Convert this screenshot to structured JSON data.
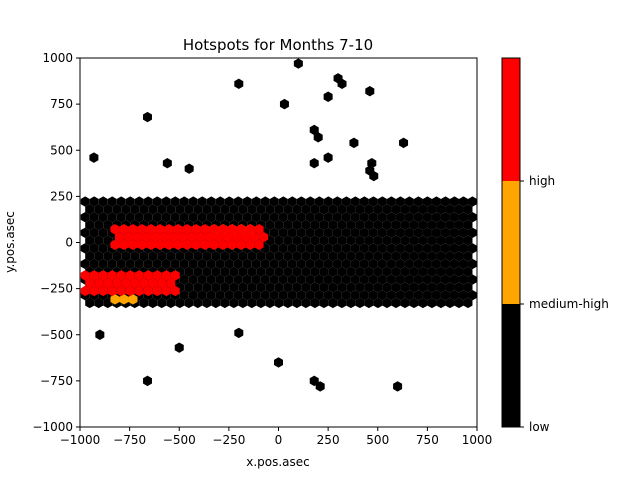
{
  "chart_data": {
    "type": "heatmap",
    "subtype": "hexbin",
    "title": "Hotspots for Months 7-10",
    "xlabel": "x.pos.asec",
    "ylabel": "y.pos.asec",
    "xlim": [
      -1000,
      1000
    ],
    "ylim": [
      -1000,
      1000
    ],
    "x_ticks": [
      -1000,
      -750,
      -500,
      -250,
      0,
      250,
      500,
      750,
      1000
    ],
    "y_ticks": [
      -1000,
      -750,
      -500,
      -250,
      0,
      250,
      500,
      750,
      1000
    ],
    "x_tick_labels": [
      "−1000",
      "−750",
      "−500",
      "−250",
      "0",
      "250",
      "500",
      "750",
      "1000"
    ],
    "y_tick_labels": [
      "−1000",
      "−750",
      "−500",
      "−250",
      "0",
      "250",
      "500",
      "750",
      "1000"
    ],
    "grid": false,
    "colorbar": {
      "levels": [
        {
          "label": "low",
          "color": "#000000"
        },
        {
          "label": "medium-high",
          "color": "#ffa500"
        },
        {
          "label": "high",
          "color": "#ff0000"
        }
      ],
      "tick_labels": [
        "low",
        "medium-high",
        "high"
      ]
    },
    "band_regions": [
      {
        "level": "low",
        "x": [
          -1000,
          1000
        ],
        "y": [
          -350,
          250
        ],
        "note": "broad background band"
      },
      {
        "level": "high",
        "x": [
          -850,
          -50
        ],
        "y": [
          -50,
          100
        ]
      },
      {
        "level": "high",
        "x": [
          -1000,
          -500
        ],
        "y": [
          -300,
          -150
        ]
      },
      {
        "level": "medium-high",
        "x": [
          -350,
          -100
        ],
        "y": [
          50,
          100
        ]
      },
      {
        "level": "medium-high",
        "x": [
          -850,
          -700
        ],
        "y": [
          -330,
          -280
        ]
      }
    ],
    "outliers": [
      [
        100,
        970
      ],
      [
        300,
        890
      ],
      [
        320,
        860
      ],
      [
        -200,
        860
      ],
      [
        460,
        820
      ],
      [
        250,
        790
      ],
      [
        30,
        750
      ],
      [
        -660,
        680
      ],
      [
        180,
        610
      ],
      [
        200,
        570
      ],
      [
        380,
        540
      ],
      [
        630,
        540
      ],
      [
        -930,
        460
      ],
      [
        250,
        460
      ],
      [
        180,
        430
      ],
      [
        470,
        430
      ],
      [
        -560,
        430
      ],
      [
        460,
        390
      ],
      [
        -450,
        400
      ],
      [
        480,
        360
      ],
      [
        -900,
        -500
      ],
      [
        -200,
        -490
      ],
      [
        -500,
        -570
      ],
      [
        0,
        -650
      ],
      [
        -660,
        -750
      ],
      [
        180,
        -750
      ],
      [
        210,
        -780
      ],
      [
        600,
        -780
      ]
    ]
  }
}
